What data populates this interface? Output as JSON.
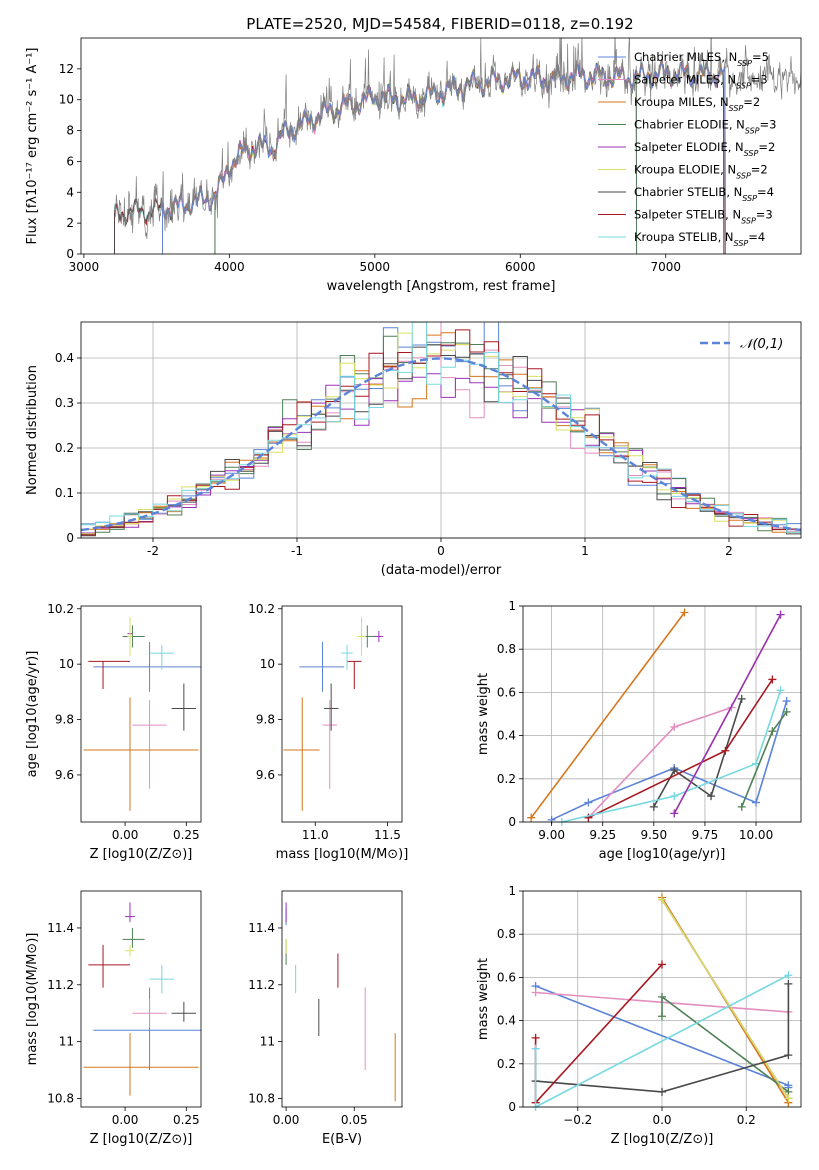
{
  "figure_title": "PLATE=2520, MJD=54584, FIBERID=0118, z=0.192",
  "colors": {
    "Chabrier MILES": "#5b84d8",
    "Salpeter MILES": "#e38ec0",
    "Kroupa MILES": "#d6761b",
    "Chabrier ELODIE": "#4f8056",
    "Salpeter ELODIE": "#9b30b8",
    "Kroupa ELODIE": "#d8df62",
    "Chabrier STELIB": "#4a4a4a",
    "Salpeter STELIB": "#a81820",
    "Kroupa STELIB": "#76d8e0"
  },
  "chart_data": [
    {
      "id": "spectrum",
      "type": "line",
      "xlabel": "wavelength [Angstrom, rest frame]",
      "ylabel": "Flux [fλ10⁻¹⁷ erg cm⁻² s⁻¹ A⁻¹]",
      "xlim": [
        2980,
        7930
      ],
      "ylim": [
        0,
        14
      ],
      "xticks": [
        3000,
        4000,
        5000,
        6000,
        7000
      ],
      "yticks": [
        0,
        2,
        4,
        6,
        8,
        10,
        12
      ],
      "legend_position": "upper-right",
      "legend": [
        "Chabrier MILES, N_SSP=5",
        "Salpeter MILES, N_SSP=3",
        "Kroupa MILES, N_SSP=2",
        "Chabrier ELODIE, N_SSP=3",
        "Salpeter ELODIE, N_SSP=2",
        "Kroupa ELODIE, N_SSP=2",
        "Chabrier STELIB, N_SSP=4",
        "Salpeter STELIB, N_SSP=3",
        "Kroupa STELIB, N_SSP=4"
      ],
      "continuum": {
        "x": [
          3210,
          3300,
          3400,
          3500,
          3600,
          3700,
          3800,
          3900,
          3950,
          4000,
          4100,
          4200,
          4300,
          4400,
          4500,
          4600,
          4700,
          4800,
          4900,
          5000,
          5200,
          5400,
          5600,
          5800,
          6000,
          6200,
          6400,
          6600,
          6800,
          7000,
          7200,
          7400,
          7500
        ],
        "y": [
          2.3,
          2.8,
          2.7,
          2.9,
          3.0,
          3.2,
          3.5,
          3.7,
          4.6,
          5.8,
          6.6,
          7.0,
          6.9,
          8.0,
          8.4,
          8.9,
          9.3,
          9.6,
          9.8,
          10.2,
          10.0,
          10.3,
          10.9,
          11.2,
          11.4,
          11.3,
          11.6,
          11.5,
          11.4,
          11.7,
          11.6,
          11.6,
          11.5
        ]
      },
      "model_coverage": {
        "MILES": [
          3540,
          7410
        ],
        "ELODIE": [
          3900,
          6800
        ],
        "STELIB": [
          3210,
          7400
        ]
      },
      "data_range": [
        3210,
        7930
      ]
    },
    {
      "id": "residual-histogram",
      "type": "step-histogram",
      "xlabel": "(data-model)/error",
      "ylabel": "Normed distribution",
      "xlim": [
        -2.5,
        2.5
      ],
      "ylim": [
        0,
        0.48
      ],
      "xticks": [
        -2,
        -1,
        0,
        1,
        2
      ],
      "yticks": [
        0.0,
        0.1,
        0.2,
        0.3,
        0.4
      ],
      "grid": true,
      "legend_position": "upper-right",
      "legend": [
        "𝒩(0,1)"
      ],
      "reference_curve": "normal(0,1)",
      "bin_width": 0.1
    },
    {
      "id": "age-vs-Z",
      "type": "errorbar",
      "xlabel": "Z [log10(Z/Z⊙)]",
      "ylabel": "age  [log10(age/yr)]",
      "xlim": [
        -0.18,
        0.31
      ],
      "ylim": [
        9.43,
        10.21
      ],
      "xticks": [
        0.0,
        0.25
      ],
      "xticklabels": [
        "0.00",
        "0.25"
      ],
      "yticks": [
        9.6,
        9.8,
        10.0,
        10.2
      ],
      "points": [
        {
          "model": "Chabrier MILES",
          "x": 0.1,
          "y": 9.99,
          "xerr": [
            0.23,
            0.23
          ],
          "yerr": [
            0.09,
            0.09
          ]
        },
        {
          "model": "Salpeter MILES",
          "x": 0.1,
          "y": 9.78,
          "xerr": [
            0.07,
            0.07
          ],
          "yerr": [
            0.23,
            0.09
          ]
        },
        {
          "model": "Kroupa MILES",
          "x": 0.02,
          "y": 9.69,
          "xerr": [
            0.19,
            0.28
          ],
          "yerr": [
            0.22,
            0.19
          ]
        },
        {
          "model": "Chabrier ELODIE",
          "x": 0.03,
          "y": 10.1,
          "xerr": [
            0.04,
            0.05
          ],
          "yerr": [
            0.04,
            0.04
          ]
        },
        {
          "model": "Salpeter ELODIE",
          "x": 0.02,
          "y": 10.11,
          "xerr": [
            0.01,
            0.01
          ],
          "yerr": [
            0.02,
            0.02
          ]
        },
        {
          "model": "Kroupa ELODIE",
          "x": 0.02,
          "y": 10.1,
          "xerr": [
            0.01,
            0.01
          ],
          "yerr": [
            0.07,
            0.07
          ]
        },
        {
          "model": "Chabrier STELIB",
          "x": 0.24,
          "y": 9.84,
          "xerr": [
            0.05,
            0.05
          ],
          "yerr": [
            0.08,
            0.09
          ]
        },
        {
          "model": "Salpeter STELIB",
          "x": -0.09,
          "y": 10.01,
          "xerr": [
            0.06,
            0.11
          ],
          "yerr": [
            0.1,
            0.0
          ]
        },
        {
          "model": "Kroupa STELIB",
          "x": 0.15,
          "y": 10.04,
          "xerr": [
            0.05,
            0.05
          ],
          "yerr": [
            0.06,
            0.03
          ]
        }
      ]
    },
    {
      "id": "age-vs-mass",
      "type": "errorbar",
      "xlabel": "mass [log10(M/M⊙)]",
      "ylabel": "",
      "xlim": [
        10.77,
        11.6
      ],
      "ylim": [
        9.43,
        10.21
      ],
      "xticks": [
        11.0,
        11.5
      ],
      "xticklabels": [
        "11.0",
        "11.5"
      ],
      "yticks": [
        9.6,
        9.8,
        10.0,
        10.2
      ],
      "points": [
        {
          "model": "Chabrier MILES",
          "x": 11.05,
          "y": 9.99,
          "xerr": [
            0.16,
            0.15
          ],
          "yerr": [
            0.09,
            0.09
          ]
        },
        {
          "model": "Salpeter MILES",
          "x": 11.1,
          "y": 9.78,
          "xerr": [
            0.05,
            0.05
          ],
          "yerr": [
            0.23,
            0.09
          ]
        },
        {
          "model": "Kroupa MILES",
          "x": 10.91,
          "y": 9.69,
          "xerr": [
            0.13,
            0.12
          ],
          "yerr": [
            0.22,
            0.19
          ]
        },
        {
          "model": "Chabrier ELODIE",
          "x": 11.36,
          "y": 10.1,
          "xerr": [
            0.05,
            0.05
          ],
          "yerr": [
            0.04,
            0.04
          ]
        },
        {
          "model": "Salpeter ELODIE",
          "x": 11.44,
          "y": 10.1,
          "xerr": [
            0.03,
            0.03
          ],
          "yerr": [
            0.02,
            0.02
          ]
        },
        {
          "model": "Kroupa ELODIE",
          "x": 11.32,
          "y": 10.1,
          "xerr": [
            0.03,
            0.03
          ],
          "yerr": [
            0.07,
            0.07
          ]
        },
        {
          "model": "Chabrier STELIB",
          "x": 11.11,
          "y": 9.84,
          "xerr": [
            0.05,
            0.05
          ],
          "yerr": [
            0.08,
            0.09
          ]
        },
        {
          "model": "Salpeter STELIB",
          "x": 11.27,
          "y": 10.01,
          "xerr": [
            0.05,
            0.05
          ],
          "yerr": [
            0.1,
            0.0
          ]
        },
        {
          "model": "Kroupa STELIB",
          "x": 11.22,
          "y": 10.04,
          "xerr": [
            0.04,
            0.04
          ],
          "yerr": [
            0.06,
            0.03
          ]
        }
      ]
    },
    {
      "id": "mass-weight-vs-age",
      "type": "line",
      "xlabel": "age  [log10(age/yr)]",
      "ylabel": "mass weight",
      "xlim": [
        8.86,
        10.22
      ],
      "ylim": [
        0.0,
        1.0
      ],
      "xticks": [
        9.0,
        9.25,
        9.5,
        9.75,
        10.0
      ],
      "xticklabels": [
        "9.00",
        "9.25",
        "9.50",
        "9.75",
        "10.00"
      ],
      "yticks": [
        0.0,
        0.2,
        0.4,
        0.6,
        0.8,
        1.0
      ],
      "grid": true,
      "series": [
        {
          "model": "Kroupa MILES",
          "x": [
            8.9,
            9.65
          ],
          "y": [
            0.02,
            0.97
          ]
        },
        {
          "model": "Chabrier MILES",
          "x": [
            9.0,
            9.18,
            9.6,
            10.0,
            10.15
          ],
          "y": [
            0.01,
            0.09,
            0.25,
            0.09,
            0.56
          ]
        },
        {
          "model": "Salpeter MILES",
          "x": [
            9.18,
            9.6,
            9.88
          ],
          "y": [
            0.02,
            0.44,
            0.53
          ]
        },
        {
          "model": "Chabrier STELIB",
          "x": [
            9.5,
            9.6,
            9.78,
            9.93
          ],
          "y": [
            0.07,
            0.24,
            0.12,
            0.57
          ]
        },
        {
          "model": "Salpeter STELIB",
          "x": [
            9.18,
            9.85,
            10.08
          ],
          "y": [
            0.02,
            0.33,
            0.66
          ]
        },
        {
          "model": "Kroupa STELIB",
          "x": [
            9.05,
            9.6,
            10.0,
            10.12
          ],
          "y": [
            0.0,
            0.12,
            0.27,
            0.61
          ]
        },
        {
          "model": "Chabrier ELODIE",
          "x": [
            9.93,
            10.08,
            10.15
          ],
          "y": [
            0.07,
            0.42,
            0.51
          ]
        },
        {
          "model": "Kroupa ELODIE",
          "x": [
            9.6,
            10.12
          ],
          "y": [
            0.04,
            0.96
          ]
        },
        {
          "model": "Salpeter ELODIE",
          "x": [
            9.6,
            10.12
          ],
          "y": [
            0.04,
            0.96
          ]
        }
      ]
    },
    {
      "id": "mass-vs-Z",
      "type": "errorbar",
      "xlabel": "Z [log10(Z/Z⊙)]",
      "ylabel": "mass [log10(M/M⊙)]",
      "xlim": [
        -0.18,
        0.31
      ],
      "ylim": [
        10.77,
        11.53
      ],
      "xticks": [
        0.0,
        0.25
      ],
      "xticklabels": [
        "0.00",
        "0.25"
      ],
      "yticks": [
        10.8,
        11.0,
        11.2,
        11.4
      ],
      "points": [
        {
          "model": "Chabrier MILES",
          "x": 0.1,
          "y": 11.04,
          "xerr": [
            0.23,
            0.23
          ],
          "yerr": [
            0.14,
            0.15
          ]
        },
        {
          "model": "Salpeter MILES",
          "x": 0.1,
          "y": 11.1,
          "xerr": [
            0.07,
            0.07
          ],
          "yerr": [
            0.05,
            0.05
          ]
        },
        {
          "model": "Kroupa MILES",
          "x": 0.02,
          "y": 10.91,
          "xerr": [
            0.19,
            0.28
          ],
          "yerr": [
            0.1,
            0.12
          ]
        },
        {
          "model": "Chabrier ELODIE",
          "x": 0.03,
          "y": 11.36,
          "xerr": [
            0.04,
            0.05
          ],
          "yerr": [
            0.03,
            0.04
          ]
        },
        {
          "model": "Salpeter ELODIE",
          "x": 0.02,
          "y": 11.44,
          "xerr": [
            0.02,
            0.02
          ],
          "yerr": [
            0.02,
            0.05
          ]
        },
        {
          "model": "Kroupa ELODIE",
          "x": 0.02,
          "y": 11.32,
          "xerr": [
            0.02,
            0.02
          ],
          "yerr": [
            0.02,
            0.02
          ]
        },
        {
          "model": "Chabrier STELIB",
          "x": 0.24,
          "y": 11.1,
          "xerr": [
            0.05,
            0.05
          ],
          "yerr": [
            0.03,
            0.04
          ]
        },
        {
          "model": "Salpeter STELIB",
          "x": -0.09,
          "y": 11.27,
          "xerr": [
            0.06,
            0.11
          ],
          "yerr": [
            0.08,
            0.07
          ]
        },
        {
          "model": "Kroupa STELIB",
          "x": 0.15,
          "y": 11.22,
          "xerr": [
            0.05,
            0.05
          ],
          "yerr": [
            0.05,
            0.05
          ]
        }
      ]
    },
    {
      "id": "mass-vs-EBV",
      "type": "errorbar",
      "xlabel": "E(B-V)",
      "ylabel": "",
      "xlim": [
        -0.003,
        0.085
      ],
      "ylim": [
        10.77,
        11.53
      ],
      "xticks": [
        0.0,
        0.05
      ],
      "xticklabels": [
        "0.00",
        "0.05"
      ],
      "yticks": [
        10.8,
        11.0,
        11.2,
        11.4
      ],
      "points": [
        {
          "model": "Chabrier MILES",
          "x": 0.0,
          "y": 11.44,
          "xerr": [
            0,
            0
          ],
          "yerr": [
            0.03,
            0.03
          ]
        },
        {
          "model": "Salpeter MILES",
          "x": 0.058,
          "y": 11.04,
          "xerr": [
            0,
            0
          ],
          "yerr": [
            0.14,
            0.15
          ]
        },
        {
          "model": "Kroupa MILES",
          "x": 0.08,
          "y": 10.91,
          "xerr": [
            0,
            0
          ],
          "yerr": [
            0.12,
            0.12
          ]
        },
        {
          "model": "Chabrier ELODIE",
          "x": 0.0,
          "y": 11.32,
          "xerr": [
            0,
            0
          ],
          "yerr": [
            0.05,
            0.04
          ]
        },
        {
          "model": "Salpeter ELODIE",
          "x": 0.0,
          "y": 11.44,
          "xerr": [
            0,
            0
          ],
          "yerr": [
            0.02,
            0.05
          ]
        },
        {
          "model": "Kroupa ELODIE",
          "x": 0.0,
          "y": 11.33,
          "xerr": [
            0,
            0
          ],
          "yerr": [
            0.02,
            0.03
          ]
        },
        {
          "model": "Chabrier STELIB",
          "x": 0.024,
          "y": 11.08,
          "xerr": [
            0,
            0
          ],
          "yerr": [
            0.06,
            0.07
          ]
        },
        {
          "model": "Salpeter STELIB",
          "x": 0.038,
          "y": 11.25,
          "xerr": [
            0,
            0
          ],
          "yerr": [
            0.06,
            0.06
          ]
        },
        {
          "model": "Kroupa STELIB",
          "x": 0.007,
          "y": 11.22,
          "xerr": [
            0,
            0
          ],
          "yerr": [
            0.05,
            0.05
          ]
        }
      ]
    },
    {
      "id": "mass-weight-vs-Z",
      "type": "line",
      "xlabel": "Z [log10(Z/Z⊙)]",
      "ylabel": "mass weight",
      "xlim": [
        -0.33,
        0.33
      ],
      "ylim": [
        0.0,
        1.0
      ],
      "xticks": [
        -0.2,
        0.0,
        0.2
      ],
      "xticklabels": [
        "−0.2",
        "0.0",
        "0.2"
      ],
      "yticks": [
        0.0,
        0.2,
        0.4,
        0.6,
        0.8,
        1.0
      ],
      "grid": true,
      "series": [
        {
          "model": "Chabrier MILES",
          "x": [
            -0.3,
            0.3,
            0.3
          ],
          "y": [
            0.56,
            0.1,
            0.09
          ]
        },
        {
          "model": "Salpeter MILES",
          "x": [
            -0.3,
            0.3
          ],
          "y": [
            0.53,
            0.44
          ]
        },
        {
          "model": "Kroupa MILES",
          "x": [
            0.0,
            0.3
          ],
          "y": [
            0.97,
            0.02
          ]
        },
        {
          "model": "Chabrier ELODIE",
          "x": [
            0.0,
            0.0,
            0.3
          ],
          "y": [
            0.42,
            0.51,
            0.07
          ]
        },
        {
          "model": "Salpeter ELODIE",
          "x": [
            0.0,
            0.3
          ],
          "y": [
            0.96,
            0.04
          ]
        },
        {
          "model": "Kroupa ELODIE",
          "x": [
            0.0,
            0.3
          ],
          "y": [
            0.96,
            0.04
          ]
        },
        {
          "model": "Chabrier STELIB",
          "x": [
            -0.3,
            0.0,
            0.3,
            0.3
          ],
          "y": [
            0.12,
            0.07,
            0.24,
            0.57
          ]
        },
        {
          "model": "Salpeter STELIB",
          "x": [
            -0.3,
            -0.3,
            0.0
          ],
          "y": [
            0.32,
            0.02,
            0.66
          ]
        },
        {
          "model": "Kroupa STELIB",
          "x": [
            -0.3,
            -0.3,
            0.3
          ],
          "y": [
            0.27,
            0.0,
            0.61
          ]
        }
      ]
    }
  ]
}
